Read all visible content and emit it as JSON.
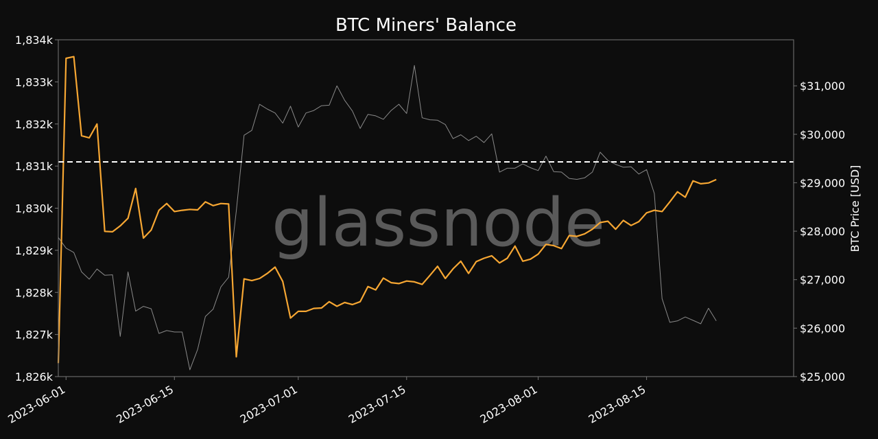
{
  "chart_data": {
    "type": "line",
    "title": "BTC Miners' Balance",
    "watermark": "glassnode",
    "x_range": [
      "2023-05-31",
      "2023-09-03"
    ],
    "x_tick_labels": [
      "2023-06-01",
      "2023-06-15",
      "2023-07-01",
      "2023-07-15",
      "2023-08-01",
      "2023-08-15"
    ],
    "y_left": {
      "label": "",
      "range": [
        1826000,
        1834000
      ],
      "tick_values": [
        1826000,
        1827000,
        1828000,
        1829000,
        1830000,
        1831000,
        1832000,
        1833000,
        1834000
      ],
      "tick_labels": [
        "1,826k",
        "1,827k",
        "1,828k",
        "1,829k",
        "1,830k",
        "1,831k",
        "1,832k",
        "1,833k",
        "1,834k"
      ]
    },
    "y_right": {
      "label": "BTC Price [USD]",
      "range": [
        25000,
        31950
      ],
      "tick_values": [
        25000,
        26000,
        27000,
        28000,
        29000,
        30000,
        31000
      ],
      "tick_labels": [
        "$25,000",
        "$26,000",
        "$27,000",
        "$28,000",
        "$29,000",
        "$30,000",
        "$31,000"
      ]
    },
    "reference_line": {
      "axis": "left",
      "value": 1831100,
      "style": "dashed"
    },
    "grid": false,
    "legend": "none",
    "colors": {
      "balance": "#f7a733",
      "price": "#8a8a8a",
      "reference": "#ffffff",
      "background": "#0d0d0d",
      "text": "#ffffff",
      "watermark": "#5a5a5a"
    },
    "series": [
      {
        "axis": "left",
        "color": "#f7a733",
        "x": [
          "2023-05-31",
          "2023-06-01",
          "2023-06-02",
          "2023-06-03",
          "2023-06-04",
          "2023-06-05",
          "2023-06-06",
          "2023-06-07",
          "2023-06-08",
          "2023-06-09",
          "2023-06-10",
          "2023-06-11",
          "2023-06-12",
          "2023-06-13",
          "2023-06-14",
          "2023-06-15",
          "2023-06-16",
          "2023-06-17",
          "2023-06-18",
          "2023-06-19",
          "2023-06-20",
          "2023-06-21",
          "2023-06-22",
          "2023-06-23",
          "2023-06-24",
          "2023-06-25",
          "2023-06-26",
          "2023-06-27",
          "2023-06-28",
          "2023-06-29",
          "2023-06-30",
          "2023-07-01",
          "2023-07-02",
          "2023-07-03",
          "2023-07-04",
          "2023-07-05",
          "2023-07-06",
          "2023-07-07",
          "2023-07-08",
          "2023-07-09",
          "2023-07-10",
          "2023-07-11",
          "2023-07-12",
          "2023-07-13",
          "2023-07-14",
          "2023-07-15",
          "2023-07-16",
          "2023-07-17",
          "2023-07-18",
          "2023-07-19",
          "2023-07-20",
          "2023-07-21",
          "2023-07-22",
          "2023-07-23",
          "2023-07-24",
          "2023-07-25",
          "2023-07-26",
          "2023-07-27",
          "2023-07-28",
          "2023-07-29",
          "2023-07-30",
          "2023-07-31",
          "2023-08-01",
          "2023-08-02",
          "2023-08-03",
          "2023-08-04",
          "2023-08-05",
          "2023-08-06",
          "2023-08-07",
          "2023-08-08",
          "2023-08-09",
          "2023-08-10",
          "2023-08-11",
          "2023-08-12",
          "2023-08-13",
          "2023-08-14",
          "2023-08-15",
          "2023-08-16",
          "2023-08-17",
          "2023-08-18",
          "2023-08-19",
          "2023-08-20",
          "2023-08-21",
          "2023-08-22",
          "2023-08-23",
          "2023-08-24"
        ],
        "values": [
          1826320,
          1833560,
          1833600,
          1831720,
          1831670,
          1832000,
          1829450,
          1829440,
          1829580,
          1829760,
          1830470,
          1829290,
          1829480,
          1829950,
          1830110,
          1829920,
          1829950,
          1829970,
          1829960,
          1830150,
          1830060,
          1830110,
          1830100,
          1826470,
          1828320,
          1828280,
          1828330,
          1828450,
          1828600,
          1828260,
          1827390,
          1827550,
          1827550,
          1827620,
          1827630,
          1827780,
          1827670,
          1827760,
          1827710,
          1827780,
          1828140,
          1828060,
          1828340,
          1828230,
          1828210,
          1828270,
          1828250,
          1828190,
          1828400,
          1828620,
          1828330,
          1828560,
          1828740,
          1828450,
          1828730,
          1828810,
          1828870,
          1828700,
          1828810,
          1829100,
          1828740,
          1828790,
          1828910,
          1829140,
          1829110,
          1829040,
          1829350,
          1829330,
          1829390,
          1829500,
          1829660,
          1829690,
          1829500,
          1829710,
          1829590,
          1829680,
          1829890,
          1829950,
          1829920,
          1830150,
          1830390,
          1830260,
          1830650,
          1830580,
          1830600,
          1830680
        ]
      },
      {
        "axis": "right",
        "color": "#8a8a8a",
        "x": [
          "2023-05-31",
          "2023-06-01",
          "2023-06-02",
          "2023-06-03",
          "2023-06-04",
          "2023-06-05",
          "2023-06-06",
          "2023-06-07",
          "2023-06-08",
          "2023-06-09",
          "2023-06-10",
          "2023-06-11",
          "2023-06-12",
          "2023-06-13",
          "2023-06-14",
          "2023-06-15",
          "2023-06-16",
          "2023-06-17",
          "2023-06-18",
          "2023-06-19",
          "2023-06-20",
          "2023-06-21",
          "2023-06-22",
          "2023-06-23",
          "2023-06-24",
          "2023-06-25",
          "2023-06-26",
          "2023-06-27",
          "2023-06-28",
          "2023-06-29",
          "2023-06-30",
          "2023-07-01",
          "2023-07-02",
          "2023-07-03",
          "2023-07-04",
          "2023-07-05",
          "2023-07-06",
          "2023-07-07",
          "2023-07-08",
          "2023-07-09",
          "2023-07-10",
          "2023-07-11",
          "2023-07-12",
          "2023-07-13",
          "2023-07-14",
          "2023-07-15",
          "2023-07-16",
          "2023-07-17",
          "2023-07-18",
          "2023-07-19",
          "2023-07-20",
          "2023-07-21",
          "2023-07-22",
          "2023-07-23",
          "2023-07-24",
          "2023-07-25",
          "2023-07-26",
          "2023-07-27",
          "2023-07-28",
          "2023-07-29",
          "2023-07-30",
          "2023-07-31",
          "2023-08-01",
          "2023-08-02",
          "2023-08-03",
          "2023-08-04",
          "2023-08-05",
          "2023-08-06",
          "2023-08-07",
          "2023-08-08",
          "2023-08-09",
          "2023-08-10",
          "2023-08-11",
          "2023-08-12",
          "2023-08-13",
          "2023-08-14",
          "2023-08-15",
          "2023-08-16",
          "2023-08-17",
          "2023-08-18",
          "2023-08-19",
          "2023-08-20",
          "2023-08-21",
          "2023-08-22",
          "2023-08-23",
          "2023-08-24"
        ],
        "values": [
          27870,
          27650,
          27560,
          27160,
          27010,
          27220,
          27090,
          27100,
          25830,
          27160,
          26350,
          26450,
          26400,
          25890,
          25950,
          25920,
          25920,
          25140,
          25560,
          26240,
          26390,
          26850,
          27050,
          28420,
          29980,
          30080,
          30620,
          30520,
          30440,
          30230,
          30580,
          30150,
          30440,
          30490,
          30590,
          30600,
          31000,
          30700,
          30480,
          30120,
          30410,
          30380,
          30310,
          30490,
          30620,
          30430,
          31420,
          30340,
          30300,
          30290,
          30200,
          29910,
          29990,
          29870,
          29960,
          29830,
          30010,
          29220,
          29300,
          29300,
          29390,
          29310,
          29250,
          29550,
          29230,
          29220,
          29090,
          29070,
          29100,
          29220,
          29630,
          29460,
          29380,
          29320,
          29330,
          29180,
          29270,
          28780,
          26610,
          26120,
          26150,
          26230,
          26160,
          26090,
          26410,
          26150
        ]
      }
    ]
  }
}
